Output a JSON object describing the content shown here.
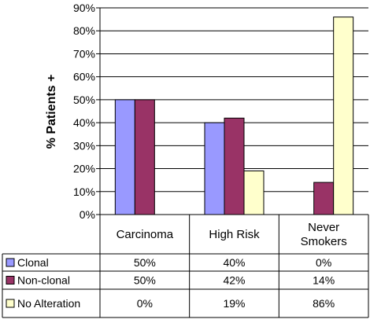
{
  "chart_data": {
    "type": "bar",
    "ylabel": "% Patients +",
    "ylim": [
      0,
      90
    ],
    "yticks": [
      "0%",
      "10%",
      "20%",
      "30%",
      "40%",
      "50%",
      "60%",
      "70%",
      "80%",
      "90%"
    ],
    "grid": "horizontal",
    "legend": "data table below chart",
    "categories": [
      [
        "Carcinoma"
      ],
      [
        "High Risk"
      ],
      [
        "Never",
        "Smokers"
      ]
    ],
    "series": [
      {
        "name": "Clonal",
        "color": "#9999ff",
        "values": [
          50,
          40,
          0
        ],
        "labels": [
          "50%",
          "40%",
          "0%"
        ]
      },
      {
        "name": "Non-clonal",
        "color": "#993366",
        "values": [
          50,
          42,
          14
        ],
        "labels": [
          "50%",
          "42%",
          "14%"
        ]
      },
      {
        "name": "No Alteration",
        "color": "#ffffcc",
        "values": [
          0,
          19,
          86
        ],
        "labels": [
          "0%",
          "19%",
          "86%"
        ]
      }
    ]
  }
}
